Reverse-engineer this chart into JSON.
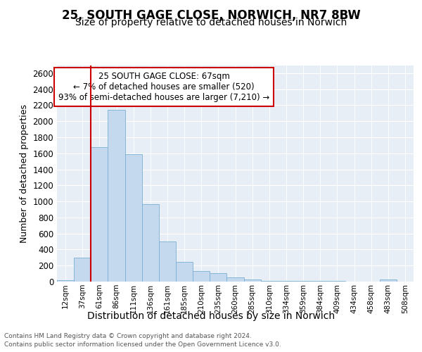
{
  "title": "25, SOUTH GAGE CLOSE, NORWICH, NR7 8BW",
  "subtitle": "Size of property relative to detached houses in Norwich",
  "xlabel": "Distribution of detached houses by size in Norwich",
  "ylabel": "Number of detached properties",
  "categories": [
    "12sqm",
    "37sqm",
    "61sqm",
    "86sqm",
    "111sqm",
    "136sqm",
    "161sqm",
    "185sqm",
    "210sqm",
    "235sqm",
    "260sqm",
    "285sqm",
    "310sqm",
    "334sqm",
    "359sqm",
    "384sqm",
    "409sqm",
    "434sqm",
    "458sqm",
    "483sqm",
    "508sqm"
  ],
  "values": [
    20,
    295,
    1680,
    2140,
    1590,
    970,
    500,
    245,
    130,
    105,
    50,
    30,
    10,
    8,
    5,
    5,
    5,
    3,
    3,
    25,
    3
  ],
  "bar_color": "#c5d9ee",
  "bar_edge_color": "#7aafd4",
  "vline_color": "#cc0000",
  "annotation_text": "25 SOUTH GAGE CLOSE: 67sqm\n← 7% of detached houses are smaller (520)\n93% of semi-detached houses are larger (7,210) →",
  "annotation_box_facecolor": "#ffffff",
  "annotation_box_edgecolor": "#cc0000",
  "ylim": [
    0,
    2700
  ],
  "yticks": [
    0,
    200,
    400,
    600,
    800,
    1000,
    1200,
    1400,
    1600,
    1800,
    2000,
    2200,
    2400,
    2600
  ],
  "footer1": "Contains HM Land Registry data © Crown copyright and database right 2024.",
  "footer2": "Contains public sector information licensed under the Open Government Licence v3.0.",
  "fig_bg_color": "#ffffff",
  "plot_bg_color": "#e8eef5",
  "title_fontsize": 12,
  "subtitle_fontsize": 10,
  "ylabel_fontsize": 9,
  "xlabel_fontsize": 10
}
